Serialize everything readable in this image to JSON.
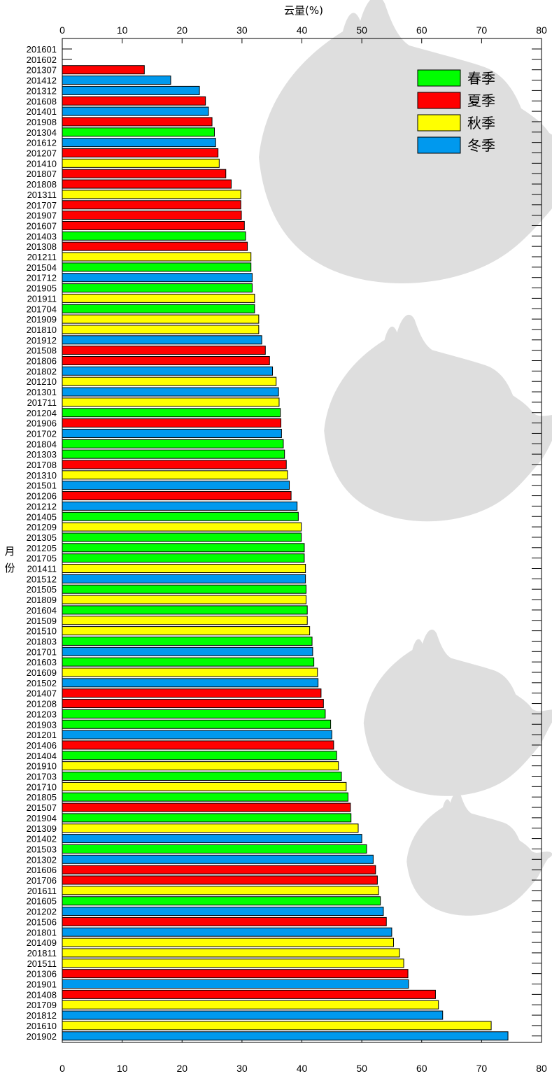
{
  "chart_data": {
    "type": "bar",
    "orientation": "horizontal",
    "xlabel": "云量(%)",
    "ylabel": "月份",
    "xlim": [
      0,
      80
    ],
    "xticks": [
      0,
      10,
      20,
      30,
      40,
      50,
      60,
      70,
      80
    ],
    "grid": false,
    "legend_position": "top-right",
    "legend": [
      {
        "name": "春季",
        "color": "#00ff00"
      },
      {
        "name": "夏季",
        "color": "#ff0000"
      },
      {
        "name": "秋季",
        "color": "#ffff00"
      },
      {
        "name": "冬季",
        "color": "#0099ee"
      }
    ],
    "categories": [
      "201601",
      "201602",
      "201307",
      "201412",
      "201312",
      "201608",
      "201401",
      "201908",
      "201304",
      "201612",
      "201207",
      "201410",
      "201807",
      "201808",
      "201311",
      "201707",
      "201907",
      "201607",
      "201403",
      "201308",
      "201211",
      "201504",
      "201712",
      "201905",
      "201911",
      "201704",
      "201909",
      "201810",
      "201912",
      "201508",
      "201806",
      "201802",
      "201210",
      "201301",
      "201711",
      "201204",
      "201906",
      "201702",
      "201804",
      "201303",
      "201708",
      "201310",
      "201501",
      "201206",
      "201212",
      "201405",
      "201209",
      "201305",
      "201205",
      "201705",
      "201411",
      "201512",
      "201505",
      "201809",
      "201604",
      "201509",
      "201510",
      "201803",
      "201701",
      "201603",
      "201609",
      "201502",
      "201407",
      "201208",
      "201203",
      "201903",
      "201201",
      "201406",
      "201404",
      "201910",
      "201703",
      "201710",
      "201805",
      "201507",
      "201904",
      "201309",
      "201402",
      "201503",
      "201302",
      "201606",
      "201706",
      "201611",
      "201605",
      "201202",
      "201506",
      "201801",
      "201409",
      "201811",
      "201511",
      "201306",
      "201901",
      "201408",
      "201709",
      "201812",
      "201610",
      "201902"
    ],
    "values": [
      0,
      0,
      13.7,
      18.1,
      22.9,
      23.9,
      24.4,
      25.0,
      25.4,
      25.6,
      26.0,
      26.2,
      27.3,
      28.2,
      29.8,
      29.8,
      29.9,
      30.4,
      30.6,
      30.9,
      31.5,
      31.5,
      31.7,
      31.7,
      32.1,
      32.1,
      32.8,
      32.8,
      33.3,
      33.9,
      34.6,
      35.1,
      35.7,
      36.1,
      36.2,
      36.4,
      36.5,
      36.6,
      36.9,
      37.1,
      37.4,
      37.6,
      37.9,
      38.2,
      39.2,
      39.4,
      39.9,
      39.9,
      40.4,
      40.4,
      40.6,
      40.6,
      40.7,
      40.7,
      40.9,
      40.9,
      41.3,
      41.7,
      41.8,
      42.0,
      42.6,
      42.7,
      43.2,
      43.6,
      43.9,
      44.8,
      45.0,
      45.3,
      45.8,
      46.1,
      46.6,
      47.4,
      47.7,
      48.1,
      48.2,
      49.4,
      50.0,
      50.8,
      51.9,
      52.3,
      52.6,
      52.8,
      53.1,
      53.6,
      54.1,
      55.0,
      55.3,
      56.3,
      57.0,
      57.7,
      57.8,
      62.3,
      62.8,
      63.5,
      71.6,
      74.4
    ],
    "seasons": [
      "冬季",
      "冬季",
      "夏季",
      "冬季",
      "冬季",
      "夏季",
      "冬季",
      "夏季",
      "春季",
      "冬季",
      "夏季",
      "秋季",
      "夏季",
      "夏季",
      "秋季",
      "夏季",
      "夏季",
      "夏季",
      "春季",
      "夏季",
      "秋季",
      "春季",
      "冬季",
      "春季",
      "秋季",
      "春季",
      "秋季",
      "秋季",
      "冬季",
      "夏季",
      "夏季",
      "冬季",
      "秋季",
      "冬季",
      "秋季",
      "春季",
      "夏季",
      "冬季",
      "春季",
      "春季",
      "夏季",
      "秋季",
      "冬季",
      "夏季",
      "冬季",
      "春季",
      "秋季",
      "春季",
      "春季",
      "春季",
      "秋季",
      "冬季",
      "春季",
      "秋季",
      "春季",
      "秋季",
      "秋季",
      "春季",
      "冬季",
      "春季",
      "秋季",
      "冬季",
      "夏季",
      "夏季",
      "春季",
      "春季",
      "冬季",
      "夏季",
      "春季",
      "秋季",
      "春季",
      "秋季",
      "春季",
      "夏季",
      "春季",
      "秋季",
      "冬季",
      "春季",
      "冬季",
      "夏季",
      "夏季",
      "秋季",
      "春季",
      "冬季",
      "夏季",
      "冬季",
      "秋季",
      "秋季",
      "秋季",
      "夏季",
      "冬季",
      "夏季",
      "秋季",
      "冬季",
      "秋季",
      "冬季"
    ]
  }
}
